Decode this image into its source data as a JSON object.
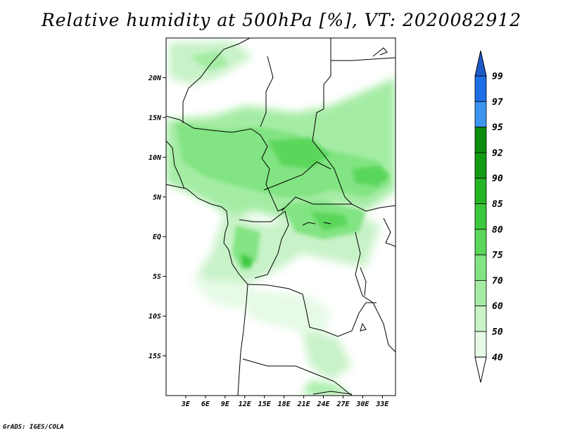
{
  "title": "Relative humidity at 500hPa [%], VT: 2020082912",
  "footer": "GrADS: IGES/COLA",
  "map": {
    "variable": "Relative humidity at 500hPa",
    "units": "%",
    "valid_time": "2020082912",
    "lon_range": [
      0,
      35
    ],
    "lat_range": [
      -20,
      25
    ],
    "lat_ticks": [
      {
        "value": 20,
        "label": "20N"
      },
      {
        "value": 15,
        "label": "15N"
      },
      {
        "value": 10,
        "label": "10N"
      },
      {
        "value": 5,
        "label": "5N"
      },
      {
        "value": 0,
        "label": "EQ"
      },
      {
        "value": -5,
        "label": "5S"
      },
      {
        "value": -10,
        "label": "10S"
      },
      {
        "value": -15,
        "label": "15S"
      }
    ],
    "lon_ticks": [
      {
        "value": 3,
        "label": "3E"
      },
      {
        "value": 6,
        "label": "6E"
      },
      {
        "value": 9,
        "label": "9E"
      },
      {
        "value": 12,
        "label": "12E"
      },
      {
        "value": 15,
        "label": "15E"
      },
      {
        "value": 18,
        "label": "18E"
      },
      {
        "value": 21,
        "label": "21E"
      },
      {
        "value": 24,
        "label": "24E"
      },
      {
        "value": 27,
        "label": "27E"
      },
      {
        "value": 30,
        "label": "30E"
      },
      {
        "value": 33,
        "label": "33E"
      }
    ]
  },
  "colorbar": {
    "levels": [
      {
        "label": "40",
        "color": "#ffffff"
      },
      {
        "label": "50",
        "color": "#e6fae6"
      },
      {
        "label": "60",
        "color": "#c8f2c8"
      },
      {
        "label": "70",
        "color": "#a4eca4"
      },
      {
        "label": "75",
        "color": "#82e482"
      },
      {
        "label": "80",
        "color": "#5ad65a"
      },
      {
        "label": "85",
        "color": "#3cc83c"
      },
      {
        "label": "90",
        "color": "#24b424"
      },
      {
        "label": "92",
        "color": "#149b14"
      },
      {
        "label": "95",
        "color": "#0c8c0c"
      },
      {
        "label": "97",
        "color": "#3c96f0"
      },
      {
        "label": "99",
        "color": "#1e6ee6"
      }
    ],
    "top_color": "#1e5ac8",
    "bottom_color": "#ffffff"
  }
}
